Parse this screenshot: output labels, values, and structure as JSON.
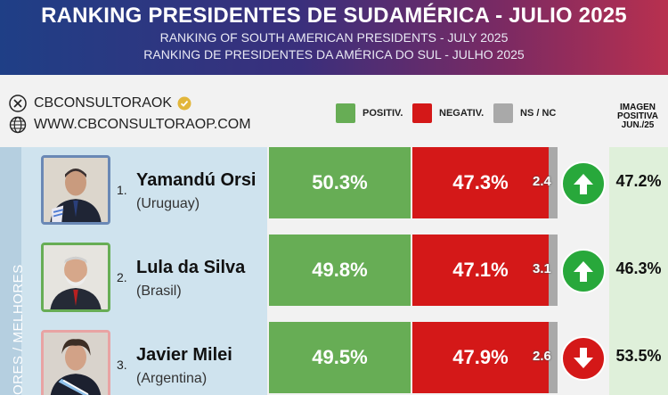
{
  "header": {
    "title": "RANKING PRESIDENTES DE SUDAMÉRICA - JULIO 2025",
    "subtitle_en": "RANKING OF SOUTH AMERICAN PRESIDENTS -   JULY 2025",
    "subtitle_pt": "RANKING DE PRESIDENTES DA AMÉRICA DO SUL - JULHO 2025"
  },
  "brand": {
    "handle": "CBCONSULTORAOK",
    "website": "WWW.CBCONSULTORAOP.COM"
  },
  "legend": {
    "positive": "POSITIV.",
    "negative": "NEGATIV.",
    "ns": "NS / NC"
  },
  "image_header": [
    "IMAGEN",
    "POSITIVA",
    "JUN./25"
  ],
  "side_label": "ORES / MELHORES",
  "colors": {
    "positive": "#67ad55",
    "negative": "#d41818",
    "ns": "#a9a9a9",
    "arrow_up": "#28a83b",
    "arrow_down": "#d41818"
  },
  "rows": [
    {
      "rank": "1.",
      "name": "Yamandú Orsi",
      "country": "(Uruguay)",
      "positive": "50.3%",
      "negative": "47.3%",
      "ns": "2.4",
      "trend": "up-arrow-icon",
      "prev_image": "47.2%"
    },
    {
      "rank": "2.",
      "name": "Lula da Silva",
      "country": "(Brasil)",
      "positive": "49.8%",
      "negative": "47.1%",
      "ns": "3.1",
      "trend": "up-arrow-icon",
      "prev_image": "46.3%"
    },
    {
      "rank": "3.",
      "name": "Javier Milei",
      "country": "(Argentina)",
      "positive": "49.5%",
      "negative": "47.9%",
      "ns": "2.6",
      "trend": "down-arrow-icon",
      "prev_image": "53.5%"
    }
  ]
}
